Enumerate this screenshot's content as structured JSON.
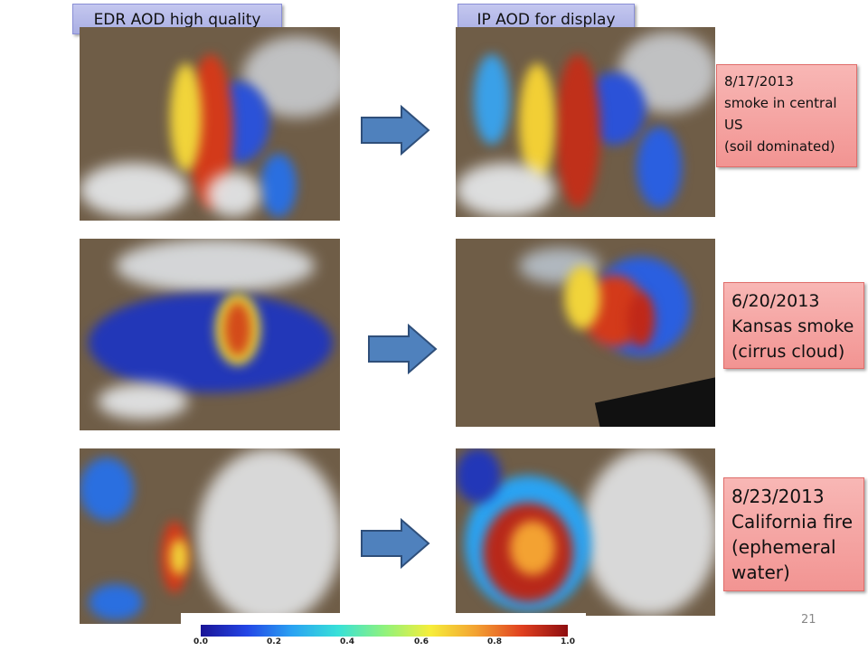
{
  "headers": {
    "left": "EDR AOD high quality",
    "right": "IP AOD for display"
  },
  "notes": [
    {
      "lines": [
        "8/17/2013",
        "smoke in central",
        "US",
        "(soil dominated)"
      ]
    },
    {
      "lines": [
        "6/20/2013",
        "Kansas smoke",
        "(cirrus cloud)"
      ]
    },
    {
      "lines": [
        "8/23/2013",
        "California fire",
        "(ephemeral",
        "water)"
      ]
    }
  ],
  "colorbar": {
    "ticks": [
      "0.0",
      "0.2",
      "0.4",
      "0.6",
      "0.8",
      "1.0"
    ],
    "colors": [
      "#1a1496",
      "#2345e6",
      "#2aa3f2",
      "#38e1d8",
      "#8ff27d",
      "#f6ee3a",
      "#f3a232",
      "#e04020",
      "#8e0e10"
    ]
  },
  "page_number": "21"
}
